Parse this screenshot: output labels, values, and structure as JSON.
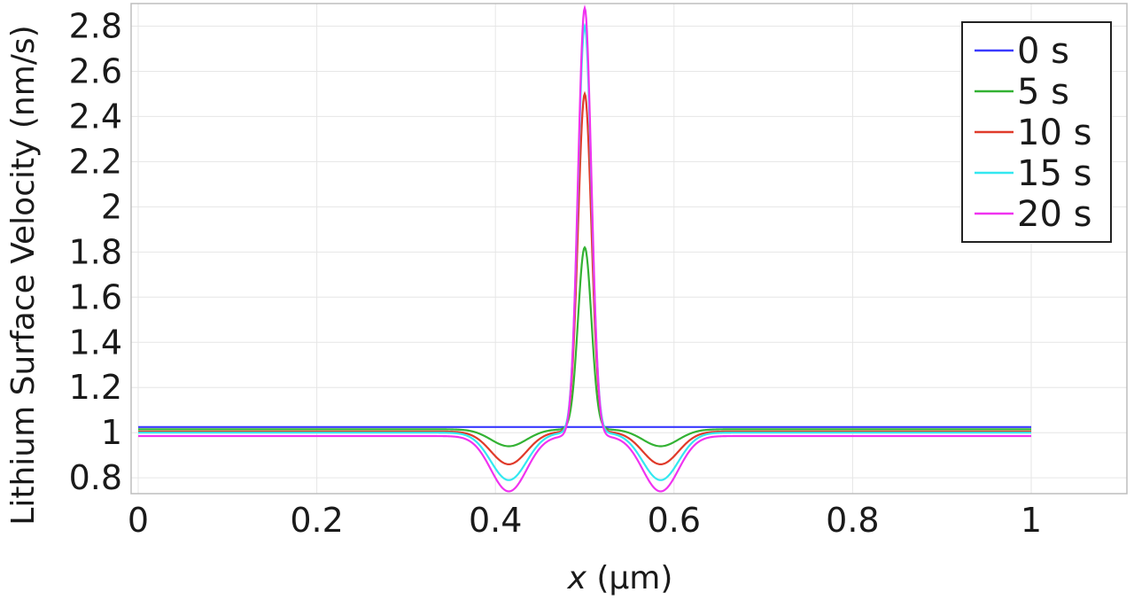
{
  "chart_data": {
    "type": "line",
    "xlabel": "x (µm)",
    "xlabel_italic_part": "x",
    "xlabel_rest": " (µm)",
    "ylabel": "Lithium Surface Velocity (nm/s)",
    "xlim": [
      0,
      1
    ],
    "ylim": [
      0.73,
      2.9
    ],
    "x_ticks": [
      "0",
      "0.2",
      "0.4",
      "0.6",
      "0.8",
      "1"
    ],
    "y_ticks": [
      "0.8",
      "1",
      "1.2",
      "1.4",
      "1.6",
      "1.8",
      "2",
      "2.2",
      "2.4",
      "2.6",
      "2.8"
    ],
    "grid": true,
    "legend_position": "top-right",
    "series": [
      {
        "name": "0 s",
        "color": "#3a3aff",
        "baseline": 1.025,
        "peak": 1.025,
        "dip": 1.025
      },
      {
        "name": "5 s",
        "color": "#33b233",
        "baseline": 1.015,
        "peak": 1.82,
        "dip": 0.94
      },
      {
        "name": "10 s",
        "color": "#e03a2a",
        "baseline": 1.005,
        "peak": 2.5,
        "dip": 0.86
      },
      {
        "name": "15 s",
        "color": "#33e8f0",
        "baseline": 1.0,
        "peak": 2.8,
        "dip": 0.79
      },
      {
        "name": "20 s",
        "color": "#f033f0",
        "baseline": 0.985,
        "peak": 2.88,
        "dip": 0.74
      }
    ],
    "peak_x": 0.5,
    "dip_x": [
      0.415,
      0.585
    ]
  }
}
